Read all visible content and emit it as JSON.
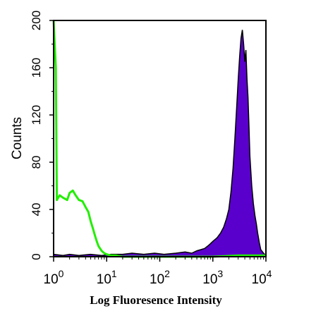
{
  "chart_data": {
    "type": "area",
    "title": "",
    "xlabel": "Log Fluoresence Intensity",
    "ylabel": "Counts",
    "x_scale": "log",
    "xlim": [
      1,
      10000
    ],
    "ylim": [
      0,
      200
    ],
    "x_ticks": [
      {
        "value": 1,
        "base": "10",
        "exp": "0"
      },
      {
        "value": 10,
        "base": "10",
        "exp": "1"
      },
      {
        "value": 100,
        "base": "10",
        "exp": "2"
      },
      {
        "value": 1000,
        "base": "10",
        "exp": "3"
      },
      {
        "value": 10000,
        "base": "10",
        "exp": "4"
      }
    ],
    "y_ticks": [
      "0",
      "40",
      "80",
      "120",
      "160",
      "200"
    ],
    "grid": false,
    "colors": {
      "sample_fill": "#5a00cc",
      "sample_line": "#000000",
      "control_line": "#22ee00"
    },
    "series": [
      {
        "style": "filled",
        "color": "#5a00cc",
        "x": [
          1,
          1.5,
          2,
          3,
          5,
          8,
          12,
          20,
          30,
          50,
          80,
          120,
          200,
          300,
          400,
          500,
          600,
          700,
          800,
          900,
          1000,
          1200,
          1400,
          1600,
          1800,
          2000,
          2200,
          2400,
          2600,
          2800,
          3000,
          3200,
          3400,
          3600,
          3800,
          4000,
          4200,
          4400,
          4600,
          4800,
          5000,
          5400,
          5800,
          6200,
          6600,
          7000,
          7500,
          8000,
          9000,
          10000
        ],
        "y": [
          2,
          1,
          2,
          1,
          2,
          1,
          2,
          2,
          3,
          2,
          3,
          2,
          3,
          4,
          3,
          5,
          6,
          7,
          9,
          11,
          13,
          16,
          20,
          25,
          32,
          40,
          55,
          75,
          100,
          125,
          150,
          170,
          185,
          192,
          180,
          165,
          175,
          150,
          135,
          110,
          85,
          60,
          45,
          35,
          28,
          20,
          12,
          6,
          3,
          1
        ]
      },
      {
        "style": "line",
        "color": "#22ee00",
        "x": [
          1,
          1.1,
          1.15,
          1.3,
          1.5,
          1.8,
          2.0,
          2.3,
          2.6,
          3.0,
          3.5,
          4.0,
          4.5,
          5.0,
          5.5,
          6.0,
          6.5,
          7.0,
          8.0,
          9.0,
          10,
          12,
          15,
          20,
          30,
          50,
          100,
          300,
          1000,
          3000,
          10000
        ],
        "y": [
          200,
          160,
          48,
          52,
          50,
          48,
          54,
          56,
          52,
          48,
          47,
          42,
          38,
          30,
          24,
          18,
          13,
          9,
          5,
          3,
          2,
          1,
          1,
          0,
          0,
          0,
          0,
          0,
          0,
          1,
          1
        ]
      }
    ]
  }
}
